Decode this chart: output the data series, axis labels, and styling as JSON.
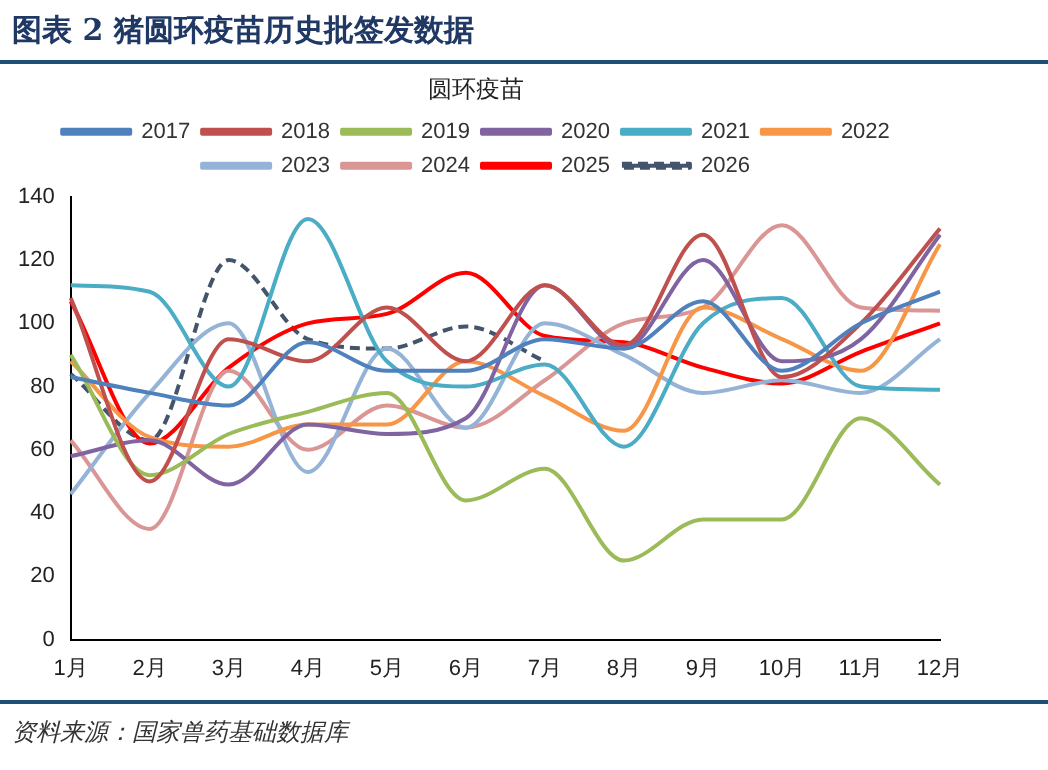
{
  "chart_data": {
    "type": "line",
    "title": "图表 2  猪圆环疫苗历史批签发数据",
    "subtitle": "圆环疫苗",
    "categories": [
      "1月",
      "2月",
      "3月",
      "4月",
      "5月",
      "6月",
      "7月",
      "8月",
      "9月",
      "10月",
      "11月",
      "12月"
    ],
    "series": [
      {
        "name": "2017",
        "color": "#4f81bd",
        "values": [
          83,
          78,
          74,
          94,
          85,
          85,
          95,
          92,
          107,
          85,
          100,
          110
        ]
      },
      {
        "name": "2018",
        "color": "#c0504d",
        "values": [
          108,
          50,
          95,
          88,
          105,
          88,
          112,
          93,
          128,
          83,
          100,
          130
        ]
      },
      {
        "name": "2019",
        "color": "#9bbb59",
        "values": [
          90,
          52,
          65,
          72,
          78,
          44,
          54,
          25,
          38,
          38,
          70,
          49
        ]
      },
      {
        "name": "2020",
        "color": "#8064a2",
        "values": [
          58,
          63,
          49,
          68,
          65,
          70,
          112,
          92,
          120,
          88,
          95,
          128
        ]
      },
      {
        "name": "2021",
        "color": "#4bacc6",
        "values": [
          112,
          110,
          80,
          133,
          88,
          80,
          87,
          61,
          100,
          108,
          80,
          79
        ]
      },
      {
        "name": "2022",
        "color": "#f79646",
        "values": [
          88,
          64,
          61,
          68,
          68,
          88,
          77,
          66,
          105,
          95,
          85,
          125
        ]
      },
      {
        "name": "2023",
        "color": "#95b3d7",
        "values": [
          46,
          78,
          100,
          53,
          92,
          67,
          100,
          90,
          78,
          82,
          78,
          95
        ]
      },
      {
        "name": "2024",
        "color": "#d99694",
        "values": [
          63,
          35,
          85,
          60,
          74,
          67,
          82,
          100,
          105,
          131,
          105,
          104
        ]
      },
      {
        "name": "2025",
        "color": "#ff0000",
        "values": [
          107,
          62,
          86,
          100,
          103,
          116,
          96,
          94,
          86,
          81,
          91,
          100
        ]
      },
      {
        "name": "2026",
        "color": "#44546a",
        "line_style": "dashed",
        "values": [
          84,
          63,
          120,
          95,
          92,
          99,
          88,
          null,
          null,
          null,
          null,
          null
        ]
      }
    ],
    "ylim": [
      0,
      140
    ],
    "yticks": [
      0,
      20,
      40,
      60,
      80,
      100,
      120,
      140
    ],
    "grid": false,
    "legend": "top",
    "marker": "none",
    "annotations": [
      "资料来源：国家兽药基础数据库"
    ]
  }
}
